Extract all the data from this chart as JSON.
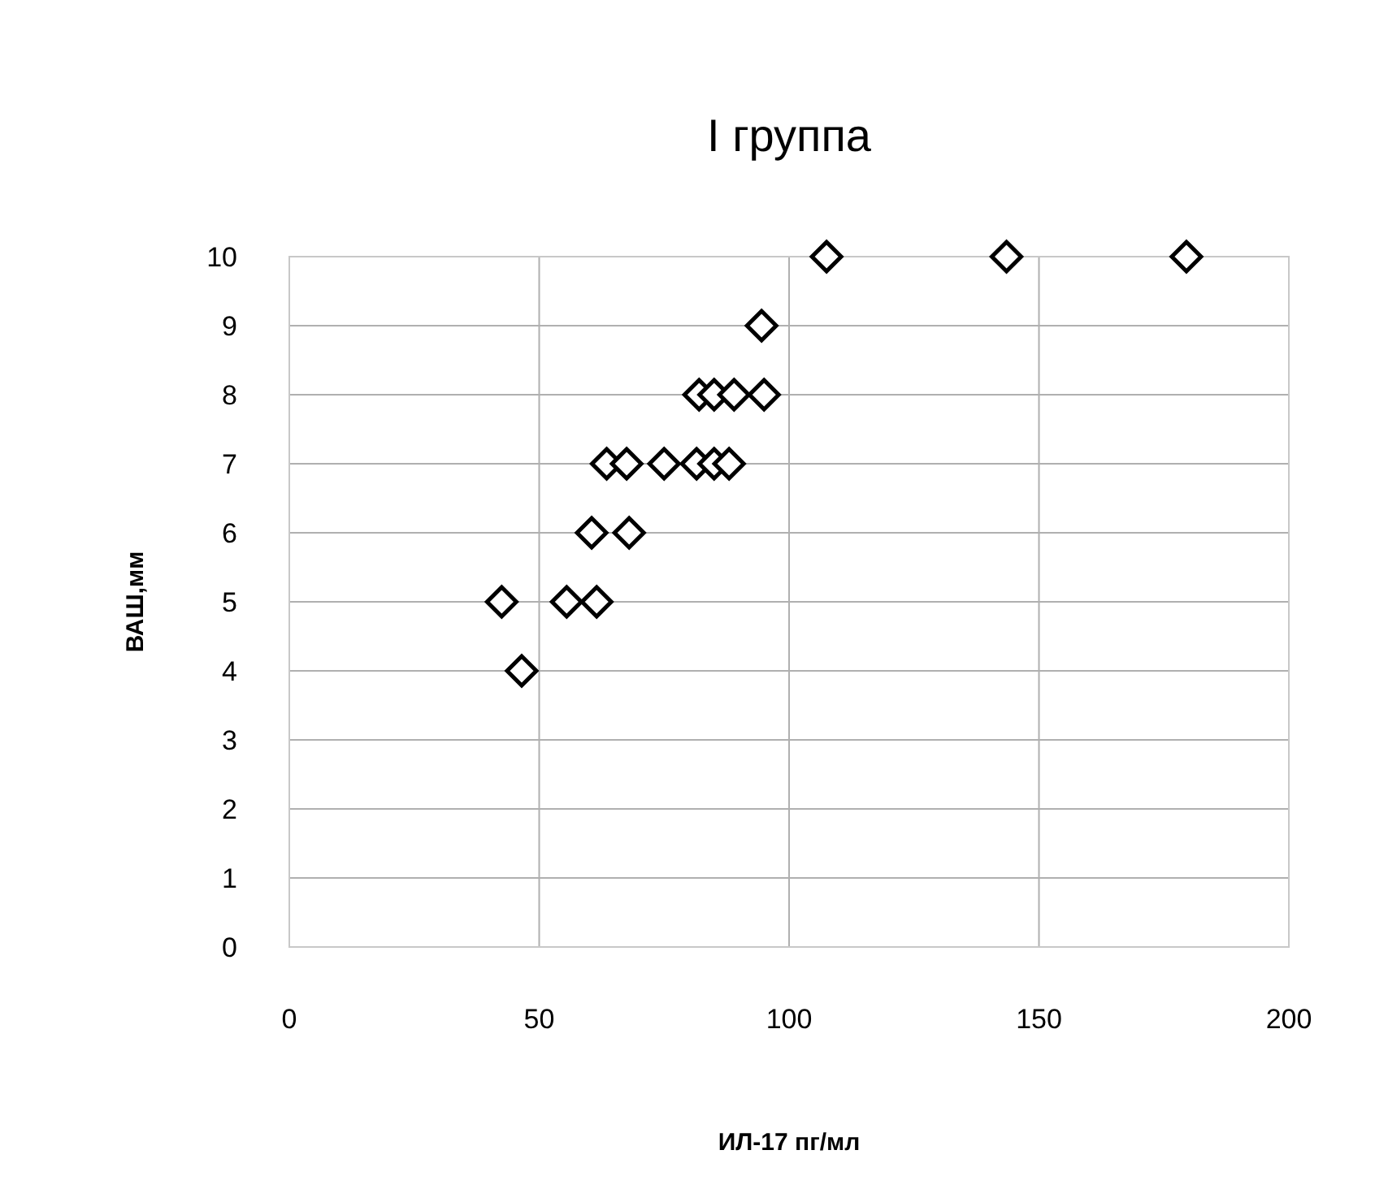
{
  "chart_data": {
    "type": "scatter",
    "title": "I группа",
    "xlabel": "ИЛ-17 пг/мл",
    "ylabel": "ВАШ,мм",
    "xlim": [
      0,
      200
    ],
    "xticks": [
      0,
      50,
      100,
      150,
      200
    ],
    "ylim": [
      0,
      10
    ],
    "yticks": [
      0,
      1,
      2,
      3,
      4,
      5,
      6,
      7,
      8,
      9,
      10
    ],
    "grid": true,
    "marker": "diamond",
    "series": [
      {
        "color": "#000000",
        "x": [
          107.5,
          143.5,
          179.5,
          94.5,
          82,
          85,
          89,
          95,
          63.5,
          67.5,
          75,
          81.5,
          85,
          88,
          60.5,
          68,
          42.5,
          55.5,
          61.5,
          46.5
        ],
        "values": [
          10,
          10,
          10,
          9,
          8,
          8,
          8,
          8,
          7,
          7,
          7,
          7,
          7,
          7,
          6,
          6,
          5,
          5,
          5,
          4
        ]
      }
    ]
  }
}
